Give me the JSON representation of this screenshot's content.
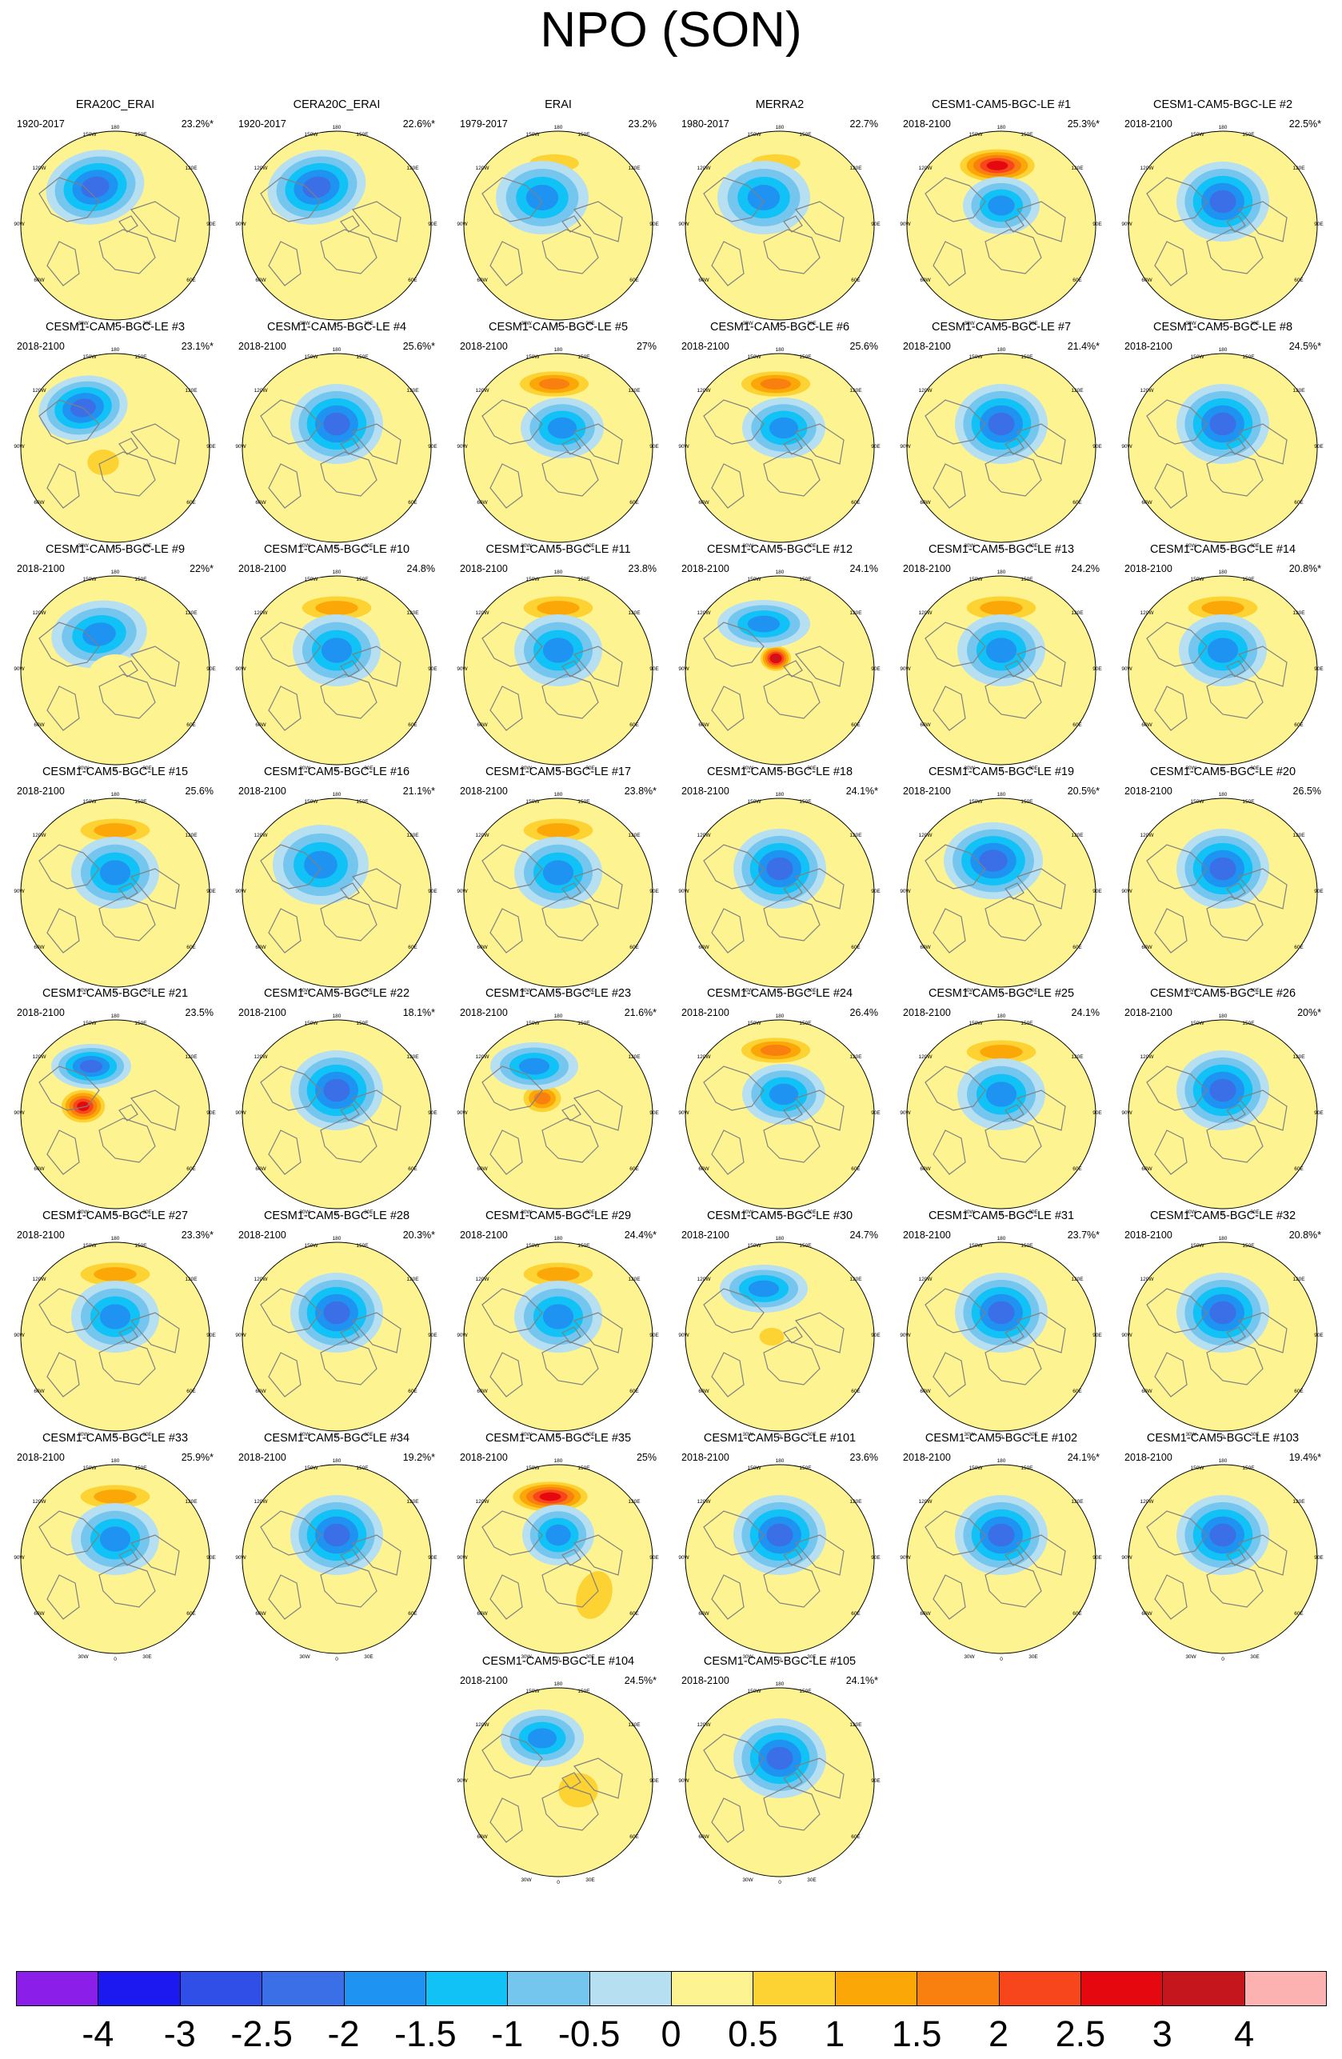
{
  "title": "NPO (SON)",
  "panels": [
    {
      "title": "ERA20C_ERAI",
      "period": "1920-2017",
      "pct": "23.2%*"
    },
    {
      "title": "CERA20C_ERAI",
      "period": "1920-2017",
      "pct": "22.6%*"
    },
    {
      "title": "ERAI",
      "period": "1979-2017",
      "pct": "23.2%"
    },
    {
      "title": "MERRA2",
      "period": "1980-2017",
      "pct": "22.7%"
    },
    {
      "title": "CESM1-CAM5-BGC-LE #1",
      "period": "2018-2100",
      "pct": "25.3%*"
    },
    {
      "title": "CESM1-CAM5-BGC-LE #2",
      "period": "2018-2100",
      "pct": "22.5%*"
    },
    {
      "title": "CESM1-CAM5-BGC-LE #3",
      "period": "2018-2100",
      "pct": "23.1%*"
    },
    {
      "title": "CESM1-CAM5-BGC-LE #4",
      "period": "2018-2100",
      "pct": "25.6%*"
    },
    {
      "title": "CESM1-CAM5-BGC-LE #5",
      "period": "2018-2100",
      "pct": "27%"
    },
    {
      "title": "CESM1-CAM5-BGC-LE #6",
      "period": "2018-2100",
      "pct": "25.6%"
    },
    {
      "title": "CESM1-CAM5-BGC-LE #7",
      "period": "2018-2100",
      "pct": "21.4%*"
    },
    {
      "title": "CESM1-CAM5-BGC-LE #8",
      "period": "2018-2100",
      "pct": "24.5%*"
    },
    {
      "title": "CESM1-CAM5-BGC-LE #9",
      "period": "2018-2100",
      "pct": "22%*"
    },
    {
      "title": "CESM1-CAM5-BGC-LE #10",
      "period": "2018-2100",
      "pct": "24.8%"
    },
    {
      "title": "CESM1-CAM5-BGC-LE #11",
      "period": "2018-2100",
      "pct": "23.8%"
    },
    {
      "title": "CESM1-CAM5-BGC-LE #12",
      "period": "2018-2100",
      "pct": "24.1%"
    },
    {
      "title": "CESM1-CAM5-BGC-LE #13",
      "period": "2018-2100",
      "pct": "24.2%"
    },
    {
      "title": "CESM1-CAM5-BGC-LE #14",
      "period": "2018-2100",
      "pct": "20.8%*"
    },
    {
      "title": "CESM1-CAM5-BGC-LE #15",
      "period": "2018-2100",
      "pct": "25.6%"
    },
    {
      "title": "CESM1-CAM5-BGC-LE #16",
      "period": "2018-2100",
      "pct": "21.1%*"
    },
    {
      "title": "CESM1-CAM5-BGC-LE #17",
      "period": "2018-2100",
      "pct": "23.8%*"
    },
    {
      "title": "CESM1-CAM5-BGC-LE #18",
      "period": "2018-2100",
      "pct": "24.1%*"
    },
    {
      "title": "CESM1-CAM5-BGC-LE #19",
      "period": "2018-2100",
      "pct": "20.5%*"
    },
    {
      "title": "CESM1-CAM5-BGC-LE #20",
      "period": "2018-2100",
      "pct": "26.5%"
    },
    {
      "title": "CESM1-CAM5-BGC-LE #21",
      "period": "2018-2100",
      "pct": "23.5%"
    },
    {
      "title": "CESM1-CAM5-BGC-LE #22",
      "period": "2018-2100",
      "pct": "18.1%*"
    },
    {
      "title": "CESM1-CAM5-BGC-LE #23",
      "period": "2018-2100",
      "pct": "21.6%*"
    },
    {
      "title": "CESM1-CAM5-BGC-LE #24",
      "period": "2018-2100",
      "pct": "26.4%"
    },
    {
      "title": "CESM1-CAM5-BGC-LE #25",
      "period": "2018-2100",
      "pct": "24.1%"
    },
    {
      "title": "CESM1-CAM5-BGC-LE #26",
      "period": "2018-2100",
      "pct": "20%*"
    },
    {
      "title": "CESM1-CAM5-BGC-LE #27",
      "period": "2018-2100",
      "pct": "23.3%*"
    },
    {
      "title": "CESM1-CAM5-BGC-LE #28",
      "period": "2018-2100",
      "pct": "20.3%*"
    },
    {
      "title": "CESM1-CAM5-BGC-LE #29",
      "period": "2018-2100",
      "pct": "24.4%*"
    },
    {
      "title": "CESM1-CAM5-BGC-LE #30",
      "period": "2018-2100",
      "pct": "24.7%"
    },
    {
      "title": "CESM1-CAM5-BGC-LE #31",
      "period": "2018-2100",
      "pct": "23.7%*"
    },
    {
      "title": "CESM1-CAM5-BGC-LE #32",
      "period": "2018-2100",
      "pct": "20.8%*"
    },
    {
      "title": "CESM1-CAM5-BGC-LE #33",
      "period": "2018-2100",
      "pct": "25.9%*"
    },
    {
      "title": "CESM1-CAM5-BGC-LE #34",
      "period": "2018-2100",
      "pct": "19.2%*"
    },
    {
      "title": "CESM1-CAM5-BGC-LE #35",
      "period": "2018-2100",
      "pct": "25%"
    },
    {
      "title": "CESM1-CAM5-BGC-LE #101",
      "period": "2018-2100",
      "pct": "23.6%"
    },
    {
      "title": "CESM1-CAM5-BGC-LE #102",
      "period": "2018-2100",
      "pct": "24.1%*"
    },
    {
      "title": "CESM1-CAM5-BGC-LE #103",
      "period": "2018-2100",
      "pct": "19.4%*"
    },
    {
      "title": "CESM1-CAM5-BGC-LE #104",
      "period": "2018-2100",
      "pct": "24.5%*"
    },
    {
      "title": "CESM1-CAM5-BGC-LE #105",
      "period": "2018-2100",
      "pct": "24.1%*"
    }
  ],
  "map_longitude_labels": [
    "180",
    "150W",
    "150E",
    "120W",
    "120E",
    "90W",
    "90E",
    "60W",
    "60E",
    "30W",
    "30E",
    "0"
  ],
  "colorbar": {
    "labels": [
      "-4",
      "-3",
      "-2.5",
      "-2",
      "-1.5",
      "-1",
      "-0.5",
      "0",
      "0.5",
      "1",
      "1.5",
      "2",
      "2.5",
      "3",
      "4"
    ],
    "colors": [
      "#8c1eea",
      "#1c18f0",
      "#2f4fe6",
      "#3a6fe8",
      "#1f93f2",
      "#10c2f6",
      "#75c6ef",
      "#b6dff2",
      "#fdf391",
      "#fdd233",
      "#fba707",
      "#f97f0e",
      "#f8461c",
      "#e5090f",
      "#c6161d",
      "#fbb2b1"
    ]
  },
  "styles": {
    "land_outline": "#808080",
    "map_background": "#fdf391"
  }
}
